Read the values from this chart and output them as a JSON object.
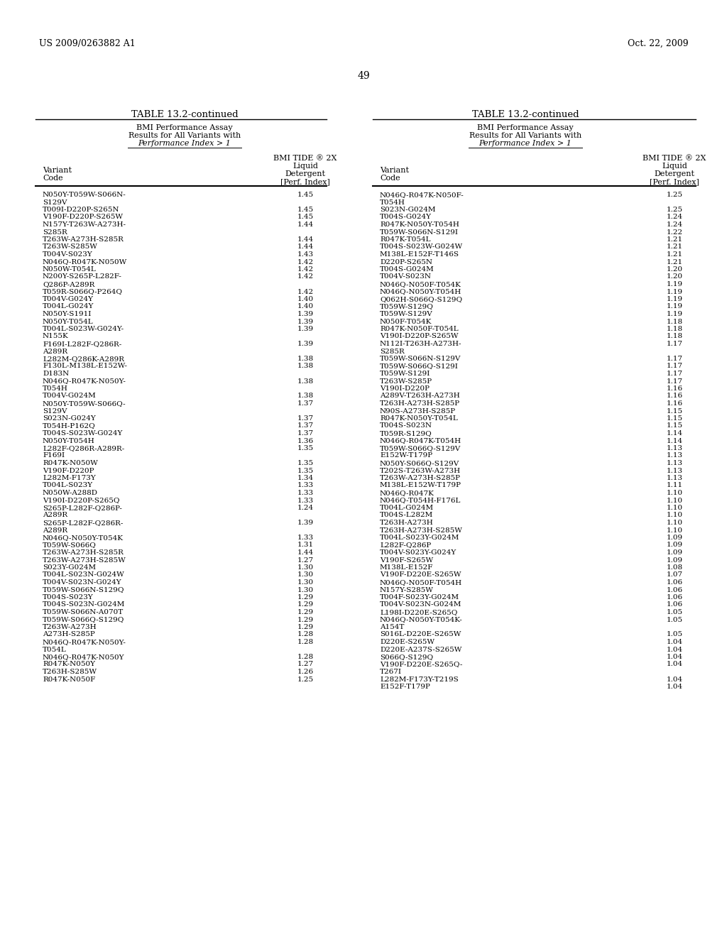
{
  "page_header_left": "US 2009/0263882 A1",
  "page_header_right": "Oct. 22, 2009",
  "page_number": "49",
  "table_title": "TABLE 13.2-continued",
  "table_subtitle_line1": "BMI Performance Assay",
  "table_subtitle_line2": "Results for All Variants with",
  "table_subtitle_line3": "Performance Index > 1",
  "col_header1_line1": "BMI TIDE ® 2X",
  "col_header1_line2": "Liquid",
  "col_header1_line3": "Detergent",
  "col_header1_line4": "[Perf. Index]",
  "col_variant_header": "Variant",
  "col_code_header": "Code",
  "left_data": [
    [
      "N050Y-T059W-S066N-\nS129V",
      "1.45"
    ],
    [
      "T009I-D220P-S265N",
      "1.45"
    ],
    [
      "V190F-D220P-S265W",
      "1.45"
    ],
    [
      "N157Y-T263W-A273H-\nS285R",
      "1.44"
    ],
    [
      "T263W-A273H-S285R",
      "1.44"
    ],
    [
      "T263W-S285W",
      "1.44"
    ],
    [
      "T004V-S023Y",
      "1.43"
    ],
    [
      "N046Q-R047K-N050W",
      "1.42"
    ],
    [
      "N050W-T054L",
      "1.42"
    ],
    [
      "N200Y-S265P-L282F-\nQ286P-A289R",
      "1.42"
    ],
    [
      "T059R-S066Q-P264Q",
      "1.42"
    ],
    [
      "T004V-G024Y",
      "1.40"
    ],
    [
      "T004L-G024Y",
      "1.40"
    ],
    [
      "N050Y-S191I",
      "1.39"
    ],
    [
      "N050Y-T054L",
      "1.39"
    ],
    [
      "T004L-S023W-G024Y-\nN155K",
      "1.39"
    ],
    [
      "F169I-L282F-Q286R-\nA289R",
      "1.39"
    ],
    [
      "L282M-Q286K-A289R",
      "1.38"
    ],
    [
      "F130L-M138L-E152W-\nD183N",
      "1.38"
    ],
    [
      "N046Q-R047K-N050Y-\nT054H",
      "1.38"
    ],
    [
      "T004V-G024M",
      "1.38"
    ],
    [
      "N050Y-T059W-S066Q-\nS129V",
      "1.37"
    ],
    [
      "S023N-G024Y",
      "1.37"
    ],
    [
      "T054H-P162Q",
      "1.37"
    ],
    [
      "T004S-S023W-G024Y",
      "1.37"
    ],
    [
      "N050Y-T054H",
      "1.36"
    ],
    [
      "L282F-Q286R-A289R-\nF169I",
      "1.35"
    ],
    [
      "R047K-N050W",
      "1.35"
    ],
    [
      "V190F-D220P",
      "1.35"
    ],
    [
      "L282M-F173Y",
      "1.34"
    ],
    [
      "T004L-S023Y",
      "1.33"
    ],
    [
      "N050W-A288D",
      "1.33"
    ],
    [
      "V190I-D220P-S265Q",
      "1.33"
    ],
    [
      "S265P-L282F-Q286P-\nA289R",
      "1.24"
    ],
    [
      "S265P-L282F-Q286R-\nA289R",
      "1.39"
    ],
    [
      "N046Q-N050Y-T054K",
      "1.33"
    ],
    [
      "T059W-S066Q",
      "1.31"
    ],
    [
      "T263W-A273H-S285R",
      "1.44"
    ],
    [
      "T263W-A273H-S285W",
      "1.27"
    ],
    [
      "S023Y-G024M",
      "1.30"
    ],
    [
      "T004L-S023N-G024W",
      "1.30"
    ],
    [
      "T004V-S023N-G024Y",
      "1.30"
    ],
    [
      "T059W-S066N-S129Q",
      "1.30"
    ],
    [
      "T004S-S023Y",
      "1.29"
    ],
    [
      "T004S-S023N-G024M",
      "1.29"
    ],
    [
      "T059W-S066N-A070T",
      "1.29"
    ],
    [
      "T059W-S066Q-S129Q",
      "1.29"
    ],
    [
      "T263W-A273H",
      "1.29"
    ],
    [
      "A273H-S285P",
      "1.28"
    ],
    [
      "N046Q-R047K-N050Y-\nT054L",
      "1.28"
    ],
    [
      "N046Q-R047K-N050Y",
      "1.28"
    ],
    [
      "R047K-N050Y",
      "1.27"
    ],
    [
      "T263H-S285W",
      "1.26"
    ],
    [
      "R047K-N050F",
      "1.25"
    ]
  ],
  "right_data": [
    [
      "N046Q-R047K-N050F-\nT054H",
      "1.25"
    ],
    [
      "S023N-G024M",
      "1.25"
    ],
    [
      "T004S-G024Y",
      "1.24"
    ],
    [
      "R047K-N050Y-T054H",
      "1.24"
    ],
    [
      "T059W-S066N-S129I",
      "1.22"
    ],
    [
      "R047K-T054L",
      "1.21"
    ],
    [
      "T004S-S023W-G024W",
      "1.21"
    ],
    [
      "M138L-E152F-T146S",
      "1.21"
    ],
    [
      "D220P-S265N",
      "1.21"
    ],
    [
      "T004S-G024M",
      "1.20"
    ],
    [
      "T004V-S023N",
      "1.20"
    ],
    [
      "N046Q-N050F-T054K",
      "1.19"
    ],
    [
      "N046Q-N050Y-T054H",
      "1.19"
    ],
    [
      "Q062H-S066Q-S129Q",
      "1.19"
    ],
    [
      "T059W-S129Q",
      "1.19"
    ],
    [
      "T059W-S129V",
      "1.19"
    ],
    [
      "N050F-T054K",
      "1.18"
    ],
    [
      "R047K-N050F-T054L",
      "1.18"
    ],
    [
      "V190I-D220P-S265W",
      "1.18"
    ],
    [
      "N112I-T263H-A273H-\nS285R",
      "1.17"
    ],
    [
      "T059W-S066N-S129V",
      "1.17"
    ],
    [
      "T059W-S066Q-S129I",
      "1.17"
    ],
    [
      "T059W-S129I",
      "1.17"
    ],
    [
      "T263W-S285P",
      "1.17"
    ],
    [
      "V190I-D220P",
      "1.16"
    ],
    [
      "A289V-T263H-A273H",
      "1.16"
    ],
    [
      "T263H-A273H-S285P",
      "1.16"
    ],
    [
      "N90S-A273H-S285P",
      "1.15"
    ],
    [
      "R047K-N050Y-T054L",
      "1.15"
    ],
    [
      "T004S-S023N",
      "1.15"
    ],
    [
      "T059R-S129Q",
      "1.14"
    ],
    [
      "N046Q-R047K-T054H",
      "1.14"
    ],
    [
      "T059W-S066Q-S129V",
      "1.13"
    ],
    [
      "E152W-T179P",
      "1.13"
    ],
    [
      "N050Y-S066Q-S129V",
      "1.13"
    ],
    [
      "T202S-T263W-A273H",
      "1.13"
    ],
    [
      "T263W-A273H-S285P",
      "1.13"
    ],
    [
      "M138L-E152W-T179P",
      "1.11"
    ],
    [
      "N046Q-R047K",
      "1.10"
    ],
    [
      "N046Q-T054H-F176L",
      "1.10"
    ],
    [
      "T004L-G024M",
      "1.10"
    ],
    [
      "T004S-L282M",
      "1.10"
    ],
    [
      "T263H-A273H",
      "1.10"
    ],
    [
      "T263H-A273H-S285W",
      "1.10"
    ],
    [
      "T004L-S023Y-G024M",
      "1.09"
    ],
    [
      "L282F-Q286P",
      "1.09"
    ],
    [
      "T004V-S023Y-G024Y",
      "1.09"
    ],
    [
      "V190F-S265W",
      "1.09"
    ],
    [
      "M138L-E152F",
      "1.08"
    ],
    [
      "V190F-D220E-S265W",
      "1.07"
    ],
    [
      "N046Q-N050F-T054H",
      "1.06"
    ],
    [
      "N157Y-S285W",
      "1.06"
    ],
    [
      "T004F-S023Y-G024M",
      "1.06"
    ],
    [
      "T004V-S023N-G024M",
      "1.06"
    ],
    [
      "L198I-D220E-S265Q",
      "1.05"
    ],
    [
      "N046Q-N050Y-T054K-\nA154T",
      "1.05"
    ],
    [
      "S016L-D220E-S265W",
      "1.05"
    ],
    [
      "D220E-S265W",
      "1.04"
    ],
    [
      "D220E-A237S-S265W",
      "1.04"
    ],
    [
      "S066Q-S129Q",
      "1.04"
    ],
    [
      "V190F-D220E-S265Q-\nT267I",
      "1.04"
    ],
    [
      "L282M-F173Y-T219S",
      "1.04"
    ],
    [
      "E152F-T179P",
      "1.04"
    ]
  ],
  "bg_color": "#ffffff",
  "text_color": "#000000",
  "line_color": "#000000"
}
